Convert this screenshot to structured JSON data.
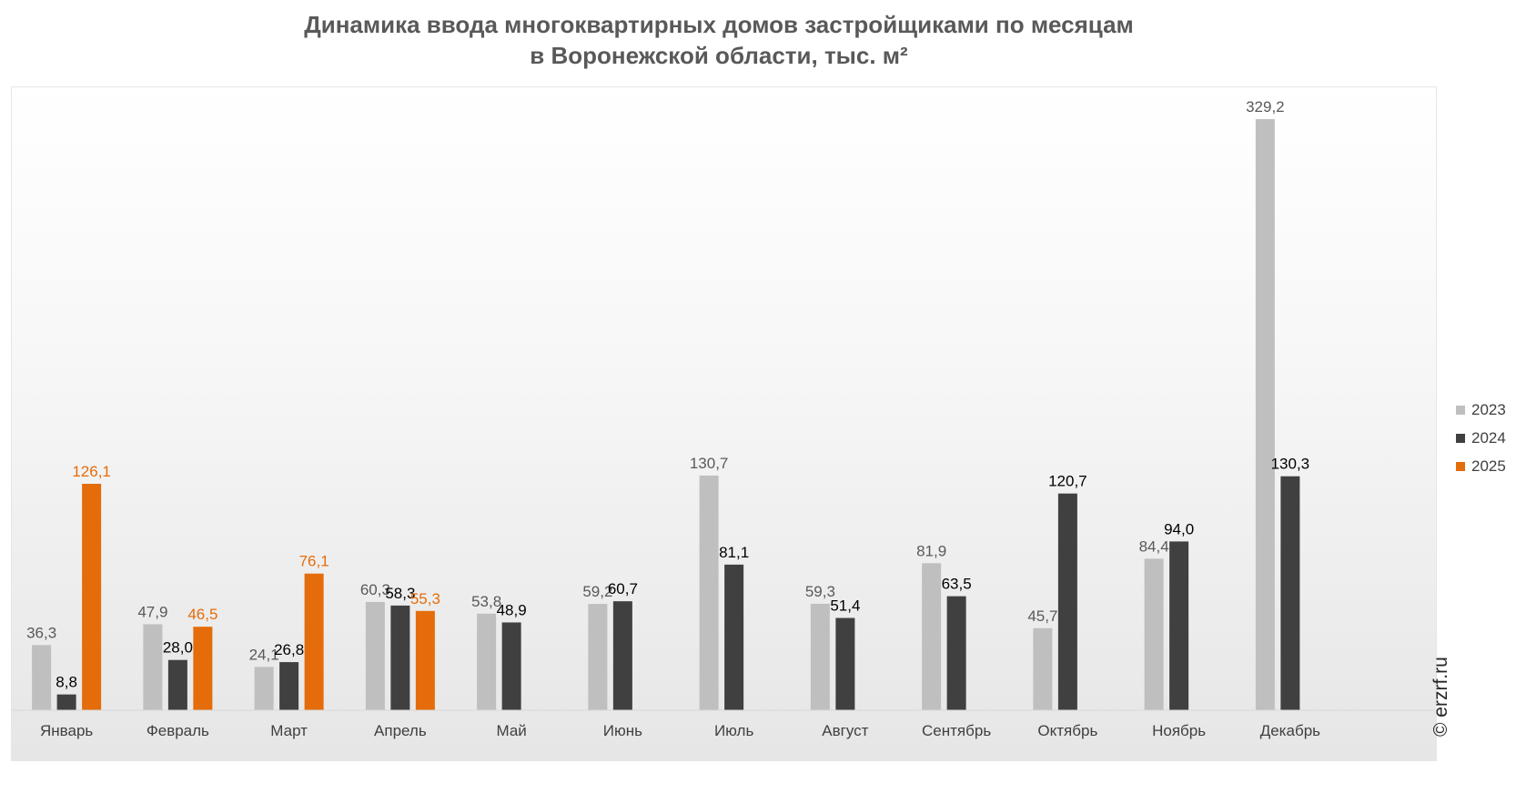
{
  "chart_data": {
    "type": "bar",
    "title": "Динамика ввода многоквартирных домов застройщиками по месяцам",
    "subtitle": "в Воронежской области, тыс. м²",
    "categories": [
      "Январь",
      "Февраль",
      "Март",
      "Апрель",
      "Май",
      "Июнь",
      "Июль",
      "Август",
      "Сентябрь",
      "Октябрь",
      "Ноябрь",
      "Декабрь"
    ],
    "series": [
      {
        "name": "2023",
        "color": "#bfbfbf",
        "label_color": "#595959",
        "values": [
          36.3,
          47.9,
          24.1,
          60.3,
          53.8,
          59.2,
          130.7,
          59.3,
          81.9,
          45.7,
          84.4,
          329.2
        ],
        "labels": [
          "36,3",
          "47,9",
          "24,1",
          "60,3",
          "53,8",
          "59,2",
          "130,7",
          "59,3",
          "81,9",
          "45,7",
          "84,4",
          "329,2"
        ]
      },
      {
        "name": "2024",
        "color": "#404040",
        "label_color": "#000000",
        "values": [
          8.8,
          28.0,
          26.8,
          58.3,
          48.9,
          60.7,
          81.1,
          51.4,
          63.5,
          120.7,
          94.0,
          130.3
        ],
        "labels": [
          "8,8",
          "28,0",
          "26,8",
          "58,3",
          "48,9",
          "60,7",
          "81,1",
          "51,4",
          "63,5",
          "120,7",
          "94,0",
          "130,3"
        ]
      },
      {
        "name": "2025",
        "color": "#e46c0a",
        "label_color": "#e46c0a",
        "values": [
          126.1,
          46.5,
          76.1,
          55.3,
          null,
          null,
          null,
          null,
          null,
          null,
          null,
          null
        ],
        "labels": [
          "126,1",
          "46,5",
          "76,1",
          "55,3",
          "",
          "",
          "",
          "",
          "",
          "",
          "",
          ""
        ]
      }
    ],
    "xlabel": "",
    "ylabel": "",
    "ylim": [
      0,
      345
    ],
    "grid": false,
    "legend": "right"
  },
  "watermark": "© erzrf.ru"
}
